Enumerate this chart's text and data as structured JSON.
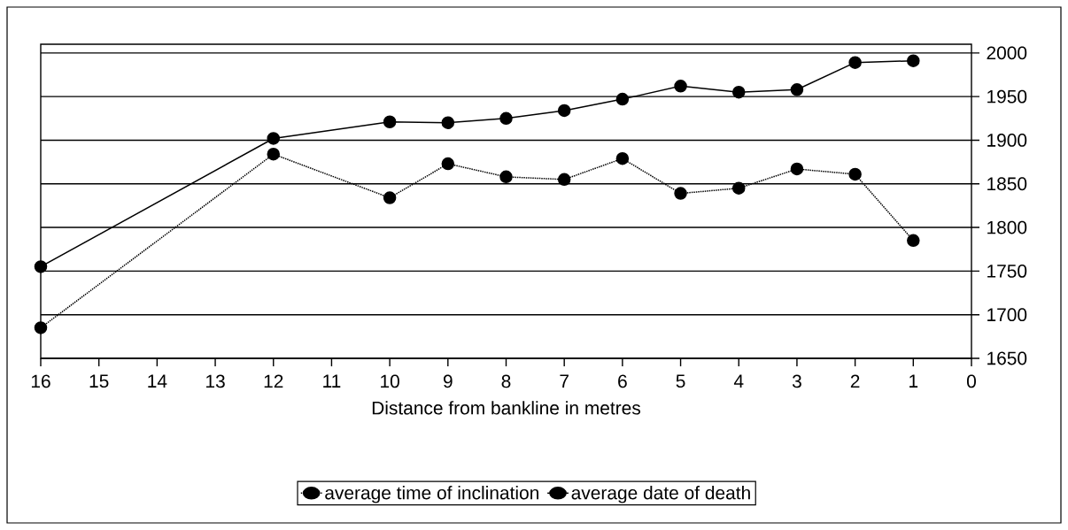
{
  "chart_data": {
    "type": "line",
    "xlabel": "Distance from bankline in metres",
    "x": [
      16,
      12,
      10,
      9,
      8,
      7,
      6,
      5,
      4,
      3,
      2,
      1
    ],
    "xlim": [
      16,
      0
    ],
    "xticks": [
      16,
      15,
      14,
      13,
      12,
      11,
      10,
      9,
      8,
      7,
      6,
      5,
      4,
      3,
      2,
      1,
      0
    ],
    "ylim": [
      1650,
      2010
    ],
    "yticks": [
      1650,
      1700,
      1750,
      1800,
      1850,
      1900,
      1950,
      2000
    ],
    "grid": "y",
    "legend": "bottom",
    "marker": "circle",
    "series": [
      {
        "name": "average time of inclination",
        "color": "#000000",
        "line_style": "dotted",
        "values": [
          1685,
          1884,
          1834,
          1873,
          1858,
          1855,
          1879,
          1839,
          1845,
          1867,
          1861,
          1785
        ]
      },
      {
        "name": "average date of death",
        "color": "#000000",
        "line_style": "solid",
        "values": [
          1755,
          1902,
          1921,
          1920,
          1925,
          1934,
          1947,
          1962,
          1955,
          1958,
          1989,
          1991
        ]
      }
    ]
  }
}
